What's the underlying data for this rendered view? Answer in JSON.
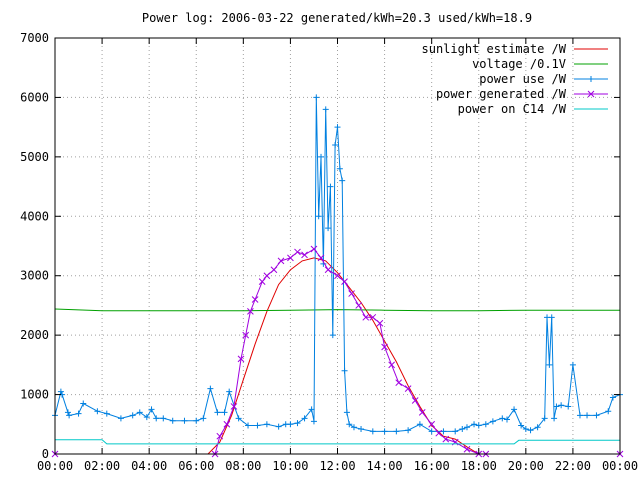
{
  "chart_data": {
    "type": "line",
    "title": "Power log: 2006-03-22 generated/kWh=20.3 used/kWh=18.9",
    "xlabel": "",
    "ylabel": "",
    "xlim": [
      0,
      24
    ],
    "ylim": [
      0,
      7000
    ],
    "grid": true,
    "legend_position": "top-right",
    "x_ticks": [
      "00:00",
      "02:00",
      "04:00",
      "06:00",
      "08:00",
      "10:00",
      "12:00",
      "14:00",
      "16:00",
      "18:00",
      "20:00",
      "22:00",
      "00:00"
    ],
    "y_ticks": [
      "0",
      "1000",
      "2000",
      "3000",
      "4000",
      "5000",
      "6000",
      "7000"
    ],
    "series": [
      {
        "name": "sunlight estimate /W",
        "color": "#e00000",
        "marker": "none",
        "x": [
          0,
          6.5,
          7,
          7.5,
          8,
          8.5,
          9,
          9.5,
          10,
          10.5,
          11,
          11.5,
          12,
          12.5,
          13,
          13.5,
          14,
          14.5,
          15,
          15.5,
          16,
          16.5,
          17,
          17.5,
          18,
          24
        ],
        "y": [
          0,
          0,
          200,
          650,
          1250,
          1850,
          2400,
          2850,
          3100,
          3250,
          3300,
          3250,
          3050,
          2800,
          2550,
          2250,
          1900,
          1550,
          1150,
          800,
          480,
          300,
          250,
          120,
          0,
          0
        ]
      },
      {
        "name": "voltage /0.1V",
        "color": "#00a000",
        "marker": "none",
        "x": [
          0,
          2,
          4,
          6,
          8,
          10,
          12,
          14,
          16,
          18,
          20,
          22,
          24
        ],
        "y": [
          2440,
          2410,
          2410,
          2410,
          2410,
          2420,
          2430,
          2420,
          2410,
          2410,
          2420,
          2420,
          2420
        ]
      },
      {
        "name": "power use /W",
        "color": "#0080e0",
        "marker": "+",
        "x": [
          0,
          0.25,
          0.3,
          0.55,
          0.6,
          1,
          1.2,
          1.8,
          2.2,
          2.8,
          3.3,
          3.6,
          3.9,
          4.1,
          4.3,
          4.6,
          5,
          5.5,
          6,
          6.3,
          6.6,
          6.9,
          7.2,
          7.4,
          7.8,
          8.2,
          8.6,
          9,
          9.5,
          9.8,
          10,
          10.3,
          10.6,
          10.9,
          11,
          11.1,
          11.2,
          11.3,
          11.4,
          11.5,
          11.6,
          11.7,
          11.8,
          11.9,
          12,
          12.1,
          12.2,
          12.3,
          12.4,
          12.5,
          12.7,
          13,
          13.5,
          14,
          14.5,
          15,
          15.5,
          16,
          16.5,
          17,
          17.3,
          17.5,
          17.8,
          18,
          18.3,
          18.6,
          19,
          19.2,
          19.5,
          19.8,
          20,
          20.2,
          20.5,
          20.8,
          20.9,
          21,
          21.1,
          21.2,
          21.3,
          21.5,
          21.8,
          22,
          22.3,
          22.6,
          23,
          23.5,
          23.7,
          24
        ],
        "y": [
          650,
          1050,
          1000,
          700,
          650,
          680,
          850,
          720,
          680,
          600,
          650,
          700,
          620,
          750,
          600,
          600,
          560,
          560,
          560,
          600,
          1100,
          700,
          700,
          1050,
          600,
          480,
          480,
          500,
          460,
          500,
          500,
          520,
          600,
          750,
          550,
          6000,
          4000,
          5000,
          3200,
          5800,
          3800,
          4500,
          2000,
          5200,
          5500,
          4800,
          4600,
          1400,
          700,
          500,
          450,
          420,
          380,
          380,
          380,
          400,
          500,
          380,
          380,
          380,
          420,
          450,
          500,
          480,
          500,
          550,
          600,
          580,
          750,
          480,
          420,
          400,
          450,
          600,
          2300,
          1500,
          2300,
          600,
          800,
          820,
          800,
          1500,
          650,
          650,
          650,
          720,
          950,
          1000
        ]
      },
      {
        "name": "power generated /W",
        "color": "#a000e0",
        "marker": "x",
        "x": [
          0,
          6.8,
          7,
          7.3,
          7.6,
          7.9,
          8.1,
          8.3,
          8.5,
          8.8,
          9,
          9.3,
          9.6,
          10,
          10.3,
          10.6,
          11,
          11.3,
          11.6,
          12,
          12.3,
          12.6,
          12.9,
          13.2,
          13.5,
          13.8,
          14,
          14.3,
          14.6,
          15,
          15.3,
          15.6,
          16,
          16.3,
          16.6,
          17,
          17.5,
          18,
          18.3,
          24
        ],
        "y": [
          0,
          0,
          300,
          500,
          800,
          1600,
          2000,
          2400,
          2600,
          2900,
          3000,
          3100,
          3250,
          3300,
          3400,
          3350,
          3450,
          3300,
          3100,
          3000,
          2900,
          2700,
          2500,
          2300,
          2300,
          2200,
          1800,
          1500,
          1200,
          1100,
          900,
          700,
          500,
          350,
          250,
          200,
          80,
          0,
          0,
          0
        ]
      },
      {
        "name": "power on C14 /W",
        "color": "#00c8c8",
        "marker": "none",
        "x": [
          0,
          2,
          2.2,
          12,
          12.2,
          19.5,
          19.7,
          24
        ],
        "y": [
          240,
          240,
          170,
          170,
          170,
          170,
          230,
          230
        ]
      }
    ]
  }
}
